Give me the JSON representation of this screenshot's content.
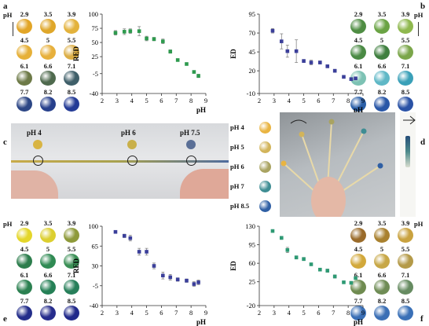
{
  "panels": {
    "a": "a",
    "b": "b",
    "c": "c",
    "d": "d",
    "e": "e",
    "f": "f"
  },
  "swatch_panels": [
    {
      "id": "a",
      "ph_label": "pH",
      "rows": [
        [
          "2.9",
          "3.5",
          "3.9"
        ],
        [
          "4.5",
          "5",
          "5.5"
        ],
        [
          "6.1",
          "6.6",
          "7.1"
        ],
        [
          "7.7",
          "8.2",
          "8.5"
        ]
      ],
      "colors": [
        [
          "#e2a526",
          "#dfa72a",
          "#e3b23c"
        ],
        [
          "#e6b038",
          "#e7b03c",
          "#dcae45"
        ],
        [
          "#6d7a47",
          "#4f6a4e",
          "#3f5f69"
        ],
        [
          "#2c4685",
          "#27408c",
          "#243b96"
        ]
      ]
    },
    {
      "id": "b",
      "ph_label": "pH",
      "rows": [
        [
          "2.9",
          "3.5",
          "3.9"
        ],
        [
          "4.5",
          "5",
          "5.5"
        ],
        [
          "6.1",
          "6.6",
          "7.1"
        ],
        [
          "7.7",
          "8.2",
          "8.5"
        ]
      ],
      "colors": [
        [
          "#4f8d43",
          "#6aa344",
          "#8fb84e"
        ],
        [
          "#4a8a44",
          "#3f7f3f",
          "#7ba64a"
        ],
        [
          "#7dc2b4",
          "#5fb8c6",
          "#3aa0b8"
        ],
        [
          "#2a5fa8",
          "#2957a7",
          "#2a52a5"
        ]
      ]
    },
    {
      "id": "e",
      "ph_label": "pH",
      "rows": [
        [
          "2.9",
          "3.5",
          "3.9"
        ],
        [
          "4.5",
          "5",
          "5.5"
        ],
        [
          "6.1",
          "6.6",
          "7.1"
        ],
        [
          "7.7",
          "8.2",
          "8.5"
        ]
      ],
      "colors": [
        [
          "#e4d62a",
          "#dccf30",
          "#8e9a3a"
        ],
        [
          "#2c7d4c",
          "#2f8a53",
          "#3a8f55"
        ],
        [
          "#2b8050",
          "#258056",
          "#277f5a"
        ],
        [
          "#232d8a",
          "#262c8c",
          "#21298a"
        ]
      ]
    },
    {
      "id": "f",
      "ph_label": "pH",
      "rows": [
        [
          "2.9",
          "3.5",
          "3.9"
        ],
        [
          "4.5",
          "5",
          "5.5"
        ],
        [
          "6.1",
          "6.6",
          "7.1"
        ],
        [
          "7.7",
          "8.2",
          "8.5"
        ]
      ],
      "colors": [
        [
          "#9a6b2a",
          "#a9812f",
          "#c9a23f"
        ],
        [
          "#d2a83a",
          "#c7a746",
          "#b49a48"
        ],
        [
          "#6f8b50",
          "#6f8c55",
          "#668b61"
        ],
        [
          "#3a6fb6",
          "#3b6fb5",
          "#3a70b7"
        ]
      ]
    }
  ],
  "photo_c": {
    "labels": [
      "pH 4",
      "pH 6",
      "pH 7.5"
    ],
    "colors": [
      "#d8b443",
      "#c9b04a",
      "#5a6f96"
    ]
  },
  "photo_d": {
    "legend": [
      {
        "label": "pH 4",
        "color": "#e9b441"
      },
      {
        "label": "pH 5",
        "color": "#d2b45a"
      },
      {
        "label": "pH 6",
        "color": "#a9a361"
      },
      {
        "label": "pH 7",
        "color": "#3e8d93"
      },
      {
        "label": "pH 8.5",
        "color": "#2f5fa4"
      }
    ]
  },
  "chart_data": [
    {
      "id": "a",
      "type": "scatter",
      "xlabel": "pH",
      "ylabel": "RED",
      "xlim": [
        2,
        9
      ],
      "ylim": [
        -40,
        100
      ],
      "xticks": [
        "2",
        "3",
        "4",
        "5",
        "6",
        "7",
        "8",
        "9"
      ],
      "yticks": [
        "100",
        "75",
        "50",
        "25",
        "-5",
        "-40"
      ],
      "ytick_values": [
        100,
        75,
        50,
        25,
        -5,
        -40
      ],
      "color": "#2e9a4e",
      "x": [
        2.9,
        3.5,
        3.9,
        4.5,
        5.0,
        5.5,
        6.1,
        6.6,
        7.1,
        7.7,
        8.2,
        8.5
      ],
      "y": [
        67,
        69,
        70,
        70,
        57,
        56,
        52,
        34,
        19,
        12,
        -2,
        -9
      ],
      "err": [
        4,
        5,
        4,
        8,
        4,
        3,
        4,
        3,
        2,
        2,
        2,
        3
      ]
    },
    {
      "id": "b",
      "type": "scatter",
      "xlabel": "pH",
      "ylabel": "ED",
      "xlim": [
        2,
        9
      ],
      "ylim": [
        -10,
        95
      ],
      "xticks": [
        "2",
        "3",
        "4",
        "5",
        "6",
        "7",
        "8",
        "9"
      ],
      "yticks": [
        "95",
        "70",
        "45",
        "20",
        "-10"
      ],
      "ytick_values": [
        95,
        70,
        45,
        20,
        -10
      ],
      "color": "#3b3f9a",
      "x": [
        2.9,
        3.5,
        3.9,
        4.5,
        5.0,
        5.5,
        6.1,
        6.6,
        7.1,
        7.7,
        8.2,
        8.5
      ],
      "y": [
        73,
        59,
        46,
        46,
        33,
        31,
        31,
        26,
        20,
        12,
        9,
        10
      ],
      "err": [
        3,
        10,
        8,
        15,
        2,
        3,
        2,
        2,
        2,
        2,
        2,
        2
      ]
    },
    {
      "id": "e",
      "type": "scatter",
      "xlabel": "pH",
      "ylabel": "RED",
      "xlim": [
        2,
        9
      ],
      "ylim": [
        -40,
        100
      ],
      "xticks": [
        "2",
        "3",
        "4",
        "5",
        "6",
        "7",
        "8",
        "9"
      ],
      "yticks": [
        "100",
        "65",
        "30",
        "-5",
        "-40"
      ],
      "ytick_values": [
        100,
        65,
        30,
        -5,
        -40
      ],
      "color": "#3b3f9a",
      "x": [
        2.9,
        3.5,
        3.9,
        4.5,
        5.0,
        5.5,
        6.1,
        6.6,
        7.1,
        7.7,
        8.2,
        8.5
      ],
      "y": [
        90,
        83,
        79,
        55,
        55,
        30,
        13,
        10,
        6,
        4,
        -2,
        1
      ],
      "err": [
        2,
        3,
        5,
        6,
        6,
        5,
        6,
        5,
        3,
        3,
        4,
        4
      ]
    },
    {
      "id": "f",
      "type": "scatter",
      "xlabel": "pH",
      "ylabel": "ED",
      "xlim": [
        2,
        9
      ],
      "ylim": [
        -20,
        130
      ],
      "xticks": [
        "2",
        "3",
        "4",
        "5",
        "6",
        "7",
        "8",
        "9"
      ],
      "yticks": [
        "130",
        "95",
        "60",
        "25",
        "-20"
      ],
      "ytick_values": [
        130,
        95,
        60,
        25,
        -20
      ],
      "color": "#2e9a74",
      "x": [
        2.9,
        3.5,
        3.9,
        4.5,
        5.0,
        5.5,
        6.1,
        6.6,
        7.1,
        7.7,
        8.2,
        8.5
      ],
      "y": [
        121,
        108,
        85,
        71,
        68,
        58,
        48,
        46,
        35,
        24,
        23,
        32
      ],
      "err": [
        2,
        3,
        5,
        3,
        3,
        2,
        2,
        3,
        3,
        2,
        2,
        2
      ]
    }
  ]
}
